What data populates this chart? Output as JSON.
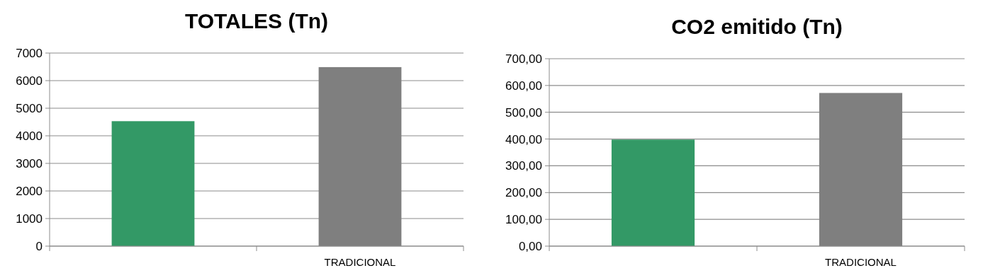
{
  "chart_data": [
    {
      "type": "bar",
      "title": "TOTALES (Tn)",
      "categories": [
        null,
        "TRADICIONAL"
      ],
      "colors": [
        "#339966",
        "#7f7f7f"
      ],
      "values": [
        4530,
        6490
      ],
      "ylim": [
        0,
        7000
      ],
      "yticks": [
        0,
        1000,
        2000,
        3000,
        4000,
        5000,
        6000,
        7000
      ],
      "grid": "y"
    },
    {
      "type": "bar",
      "title": "CO2 emitido (Tn)",
      "categories": [
        null,
        "TRADICIONAL"
      ],
      "colors": [
        "#339966",
        "#7f7f7f"
      ],
      "values": [
        398,
        572
      ],
      "ylim": [
        0,
        700
      ],
      "yticks": [
        {
          "value": 0,
          "label": "0,00"
        },
        {
          "value": 100,
          "label": "100,00"
        },
        {
          "value": 200,
          "label": "200,00"
        },
        {
          "value": 300,
          "label": "300,00"
        },
        {
          "value": 400,
          "label": "400,00"
        },
        {
          "value": 500,
          "label": "500,00"
        },
        {
          "value": 600,
          "label": "600,00"
        },
        {
          "value": 700,
          "label": "700,00"
        }
      ],
      "grid": "y"
    }
  ]
}
